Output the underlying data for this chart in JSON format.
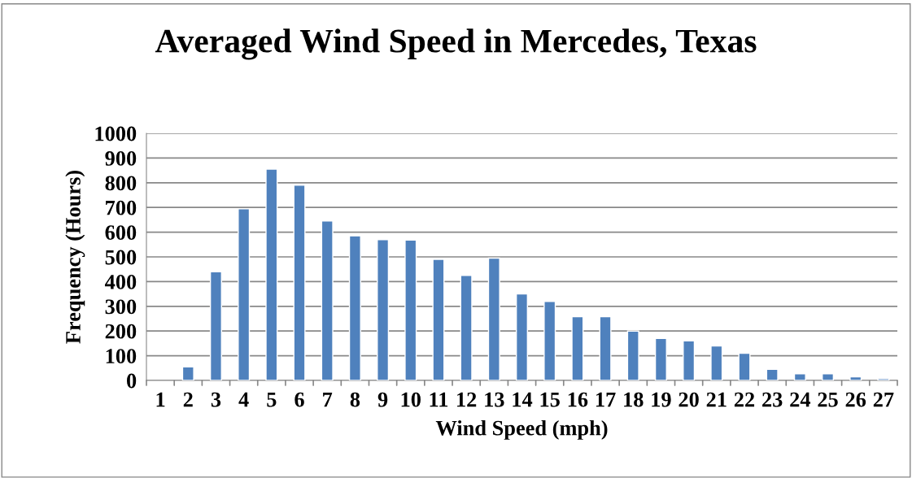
{
  "chart_data": {
    "type": "bar",
    "title": "Averaged Wind Speed in Mercedes, Texas",
    "xlabel": "Wind Speed (mph)",
    "ylabel": "Frequency (Hours)",
    "categories": [
      "1",
      "2",
      "3",
      "4",
      "5",
      "6",
      "7",
      "8",
      "9",
      "10",
      "11",
      "12",
      "13",
      "14",
      "15",
      "16",
      "17",
      "18",
      "19",
      "20",
      "21",
      "22",
      "23",
      "24",
      "25",
      "26",
      "27"
    ],
    "values": [
      null,
      55,
      440,
      695,
      855,
      790,
      645,
      585,
      570,
      568,
      490,
      425,
      495,
      350,
      320,
      258,
      258,
      200,
      170,
      160,
      140,
      110,
      45,
      27,
      27,
      15,
      7
    ],
    "color": "#4f81bd",
    "ylim": [
      0,
      1000
    ],
    "yticks": [
      0,
      100,
      200,
      300,
      400,
      500,
      600,
      700,
      800,
      900,
      1000
    ],
    "grid": "y",
    "legend": false
  }
}
